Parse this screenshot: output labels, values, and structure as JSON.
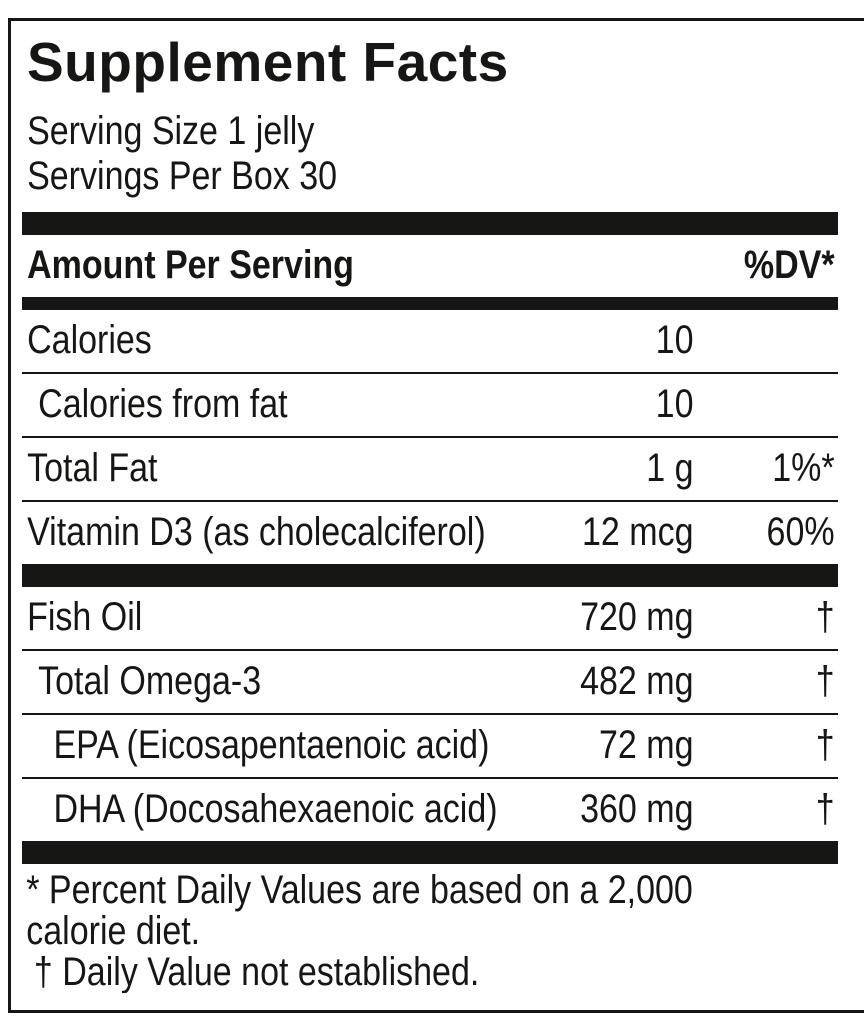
{
  "colors": {
    "ink": "#161614",
    "background": "#ffffff"
  },
  "title": "Supplement Facts",
  "serving": {
    "size_line": "Serving Size 1 jelly",
    "per_box_line": "Servings Per Box 30"
  },
  "header": {
    "amount_label": "Amount Per Serving",
    "dv_label": "%DV*"
  },
  "sections": [
    {
      "rows": [
        {
          "name": "Calories",
          "amount": "10",
          "dv": ""
        },
        {
          "name": "Calories from fat",
          "amount": "10",
          "dv": ""
        },
        {
          "name": "Total Fat",
          "amount": "1 g",
          "dv": "1%*"
        },
        {
          "name": "Vitamin D3 (as cholecalciferol)",
          "amount": "12 mcg",
          "dv": "60%"
        }
      ]
    },
    {
      "rows": [
        {
          "name": "Fish Oil",
          "amount": "720 mg",
          "dv": "†"
        },
        {
          "name": "Total Omega-3",
          "amount": "482 mg",
          "dv": "†"
        },
        {
          "name": "EPA (Eicosapentaenoic acid)",
          "amount": "72 mg",
          "dv": "†"
        },
        {
          "name": "DHA (Docosahexaenoic acid)",
          "amount": "360 mg",
          "dv": "†"
        }
      ]
    }
  ],
  "footnotes": {
    "dv_line1": "* Percent Daily Values are based on a 2,000",
    "dv_line2": "calorie diet.",
    "dagger_line": "† Daily Value not established."
  }
}
